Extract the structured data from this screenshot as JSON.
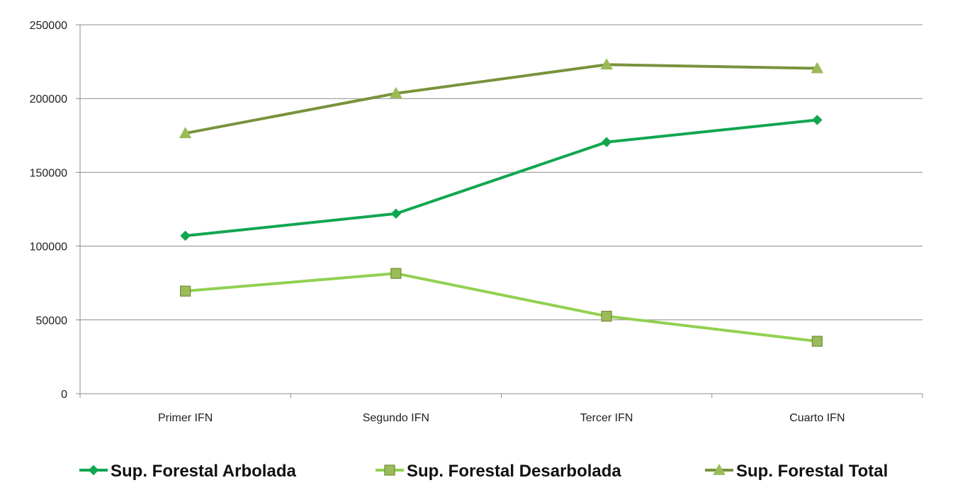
{
  "chart_data": {
    "type": "line",
    "title": "",
    "xlabel": "",
    "ylabel": "",
    "categories": [
      "Primer IFN",
      "Segundo IFN",
      "Tercer IFN",
      "Cuarto IFN"
    ],
    "ylim": [
      0,
      250000
    ],
    "yticks": [
      "0",
      "50000",
      "100000",
      "150000",
      "200000",
      "250000"
    ],
    "grid": true,
    "legend_position": "bottom",
    "series": [
      {
        "name": "Sup. Forestal Arbolada",
        "values": [
          107000,
          122000,
          170500,
          185500
        ],
        "color": "#10a650",
        "marker": "diamond"
      },
      {
        "name": "Sup. Forestal Desarbolada",
        "values": [
          69500,
          81500,
          52500,
          35500
        ],
        "color": "#92d050",
        "marker_fill": "#9bbb59",
        "marker_stroke": "#76923c",
        "marker": "square"
      },
      {
        "name": "Sup. Forestal Total",
        "values": [
          176500,
          203500,
          223000,
          220500
        ],
        "color": "#77933c",
        "marker_fill": "#9bbb59",
        "marker": "triangle"
      }
    ]
  }
}
